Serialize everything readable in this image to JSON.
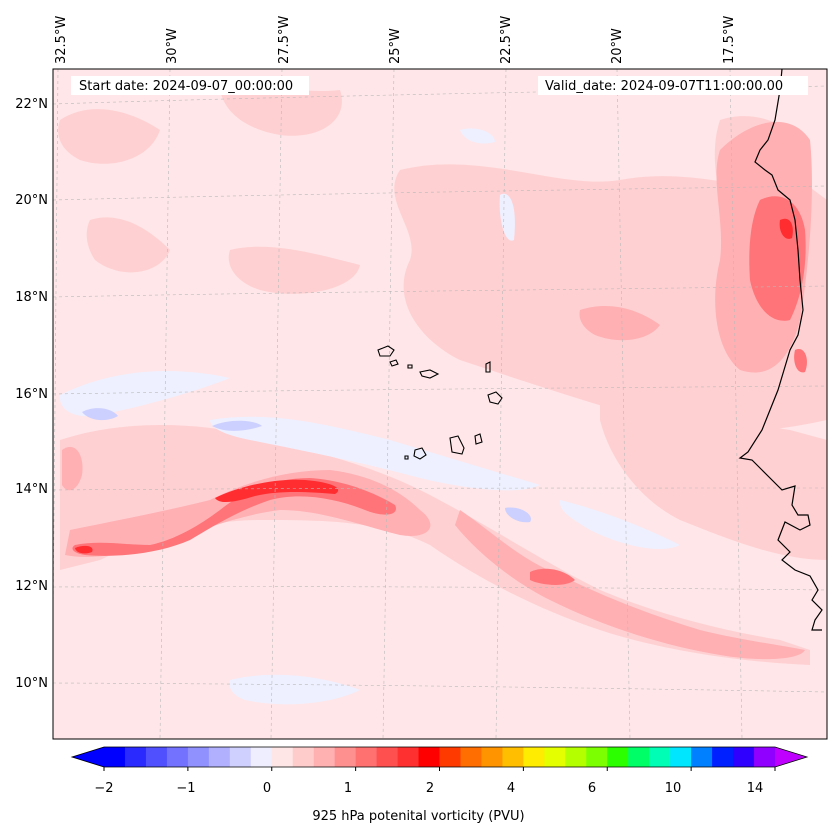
{
  "header": {
    "start_text": "Start date: 2024-09-07_00:00:00",
    "valid_text": "Valid_date: 2024-09-07T11:00:00.00"
  },
  "map": {
    "lon_labels": [
      "32.5°W",
      "30°W",
      "27.5°W",
      "25°W",
      "22.5°W",
      "20°W",
      "17.5°W"
    ],
    "lat_labels": [
      "22°N",
      "20°N",
      "18°N",
      "16°N",
      "14°N",
      "12°N",
      "10°N"
    ],
    "background_color": "#ffe6e8",
    "field_colors": {
      "weak_positive": "#ffd0d2",
      "moderate": "#ffb0b3",
      "strong": "#ff7478",
      "very_strong": "#ff2c30",
      "weak_negative": "#eef0ff",
      "negative": "#ccd0ff"
    }
  },
  "colorbar": {
    "colors": [
      "#0000ff",
      "#2a2aff",
      "#5050ff",
      "#7272ff",
      "#9090ff",
      "#b0b0ff",
      "#d0d0ff",
      "#eeeeff",
      "#ffe6e6",
      "#ffcccc",
      "#ffb0b0",
      "#ff9090",
      "#ff7070",
      "#ff5050",
      "#ff3030",
      "#ff0000",
      "#ff3a00",
      "#ff6e00",
      "#ff9400",
      "#ffbe00",
      "#ffec00",
      "#e4ff00",
      "#b4ff00",
      "#7cff00",
      "#2cff00",
      "#00ff66",
      "#00ffb4",
      "#00e6ff",
      "#0080ff",
      "#0020ff",
      "#3000ff",
      "#9000ff"
    ],
    "under_color": "#0000ff",
    "over_color": "#c000ff",
    "tick_labels": [
      "−2",
      "−1",
      "0",
      "1",
      "2",
      "4",
      "6",
      "10",
      "14"
    ],
    "title": "925 hPa potenital vorticity (PVU)"
  }
}
